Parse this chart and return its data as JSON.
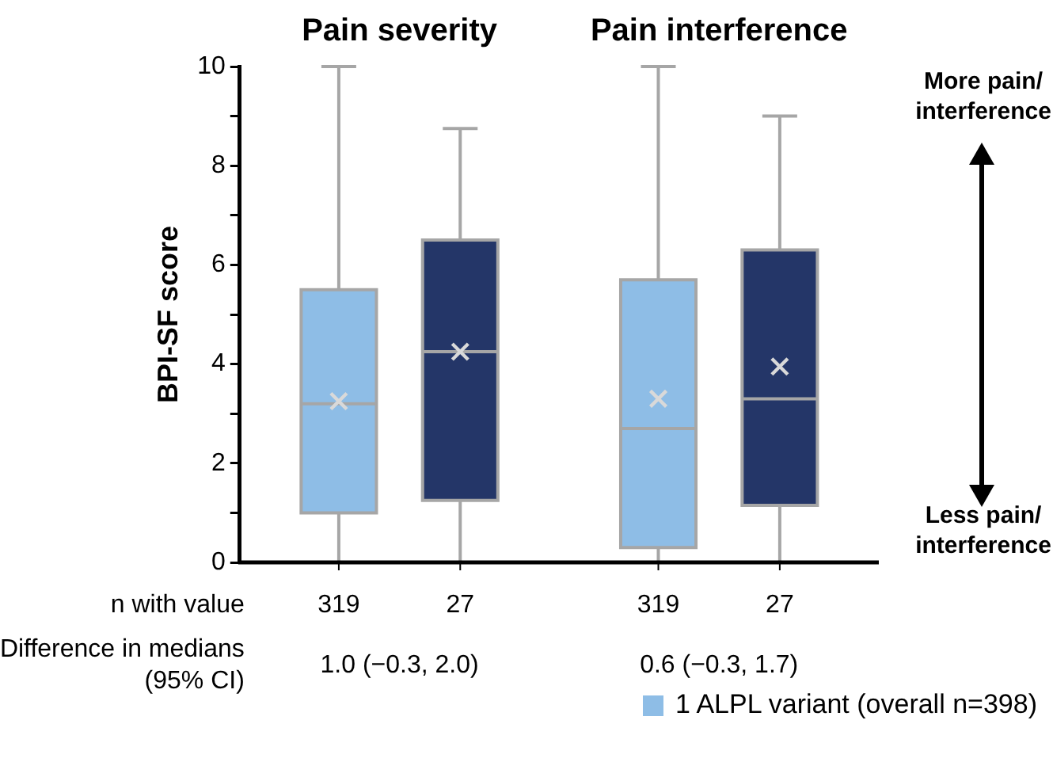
{
  "chart_data": {
    "type": "box",
    "categories": [
      "Pain severity",
      "Pain interference"
    ],
    "series": [
      {
        "name": "1 ALPL variant (overall n=398)",
        "color": "#8ebde6",
        "boxes": [
          {
            "low": 0,
            "q1": 1.0,
            "median": 3.2,
            "q3": 5.5,
            "high": 10,
            "mean": 3.25
          },
          {
            "low": 0,
            "q1": 0.3,
            "median": 2.7,
            "q3": 5.7,
            "high": 10,
            "mean": 3.3
          }
        ]
      },
      {
        "color": "#243668",
        "boxes": [
          {
            "low": 0,
            "q1": 1.25,
            "median": 4.25,
            "q3": 6.5,
            "high": 8.75,
            "mean": 4.25
          },
          {
            "low": 0,
            "q1": 1.15,
            "median": 3.3,
            "q3": 6.3,
            "high": 9,
            "mean": 3.95
          }
        ]
      }
    ],
    "ylabel": "BPI-SF score",
    "ylim": [
      0,
      10
    ],
    "yticks": [
      0,
      {
        "value": 1,
        "label": null
      },
      2,
      {
        "value": 3,
        "label": null
      },
      4,
      {
        "value": 5,
        "label": null
      },
      6,
      {
        "value": 7,
        "label": null
      },
      8,
      {
        "value": 9,
        "label": null
      },
      10
    ],
    "grid": false,
    "legend": "bottom right",
    "annotations": [
      "n with value",
      "319",
      "27",
      "319",
      "27",
      "Difference in medians (95% CI)",
      "1.0 (−0.3, 2.0)",
      "0.6 (−0.3, 1.7)",
      "More pain/ interference",
      "Less pain/ interference"
    ]
  }
}
